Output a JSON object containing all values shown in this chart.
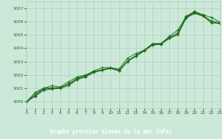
{
  "xlabel": "Graphe pression niveau de la mer (hPa)",
  "ylim": [
    999.5,
    1007.5
  ],
  "xlim": [
    0,
    23
  ],
  "yticks": [
    1000,
    1001,
    1002,
    1003,
    1004,
    1005,
    1006,
    1007
  ],
  "xticks": [
    0,
    1,
    2,
    3,
    4,
    5,
    6,
    7,
    8,
    9,
    10,
    11,
    12,
    13,
    14,
    15,
    16,
    17,
    18,
    19,
    20,
    21,
    22,
    23
  ],
  "bg_color": "#cce8d8",
  "line_color": "#1a6b1a",
  "grid_color": "#aacfbc",
  "label_bg": "#1a6b1a",
  "series": [
    [
      1000.0,
      1000.7,
      1001.0,
      1001.2,
      1001.1,
      1001.5,
      1001.85,
      1002.0,
      1002.3,
      1002.55,
      1002.55,
      1002.45,
      1003.25,
      1003.6,
      1003.85,
      1004.35,
      1004.35,
      1004.9,
      1005.35,
      1006.4,
      1006.75,
      1006.5,
      1006.3,
      1005.95
    ],
    [
      1000.0,
      1000.55,
      1001.0,
      1001.05,
      1001.05,
      1001.35,
      1001.75,
      1001.95,
      1002.25,
      1002.4,
      1002.55,
      1002.35,
      1003.05,
      1003.45,
      1003.85,
      1004.3,
      1004.35,
      1004.8,
      1005.15,
      1006.35,
      1006.7,
      1006.45,
      1006.05,
      1005.9
    ],
    [
      1000.0,
      1000.45,
      1000.95,
      1001.0,
      1001.05,
      1001.3,
      1001.7,
      1001.9,
      1002.2,
      1002.35,
      1002.5,
      1002.3,
      1003.0,
      1003.4,
      1003.8,
      1004.25,
      1004.3,
      1004.75,
      1005.05,
      1006.3,
      1006.65,
      1006.4,
      1005.95,
      1005.85
    ],
    [
      1000.0,
      1000.4,
      1000.85,
      1000.95,
      1001.0,
      1001.2,
      1001.65,
      1001.85,
      1002.2,
      1002.35,
      1002.5,
      1002.3,
      1003.0,
      1003.4,
      1003.8,
      1004.25,
      1004.3,
      1004.75,
      1005.0,
      1006.25,
      1006.6,
      1006.4,
      1005.9,
      1005.85
    ]
  ]
}
